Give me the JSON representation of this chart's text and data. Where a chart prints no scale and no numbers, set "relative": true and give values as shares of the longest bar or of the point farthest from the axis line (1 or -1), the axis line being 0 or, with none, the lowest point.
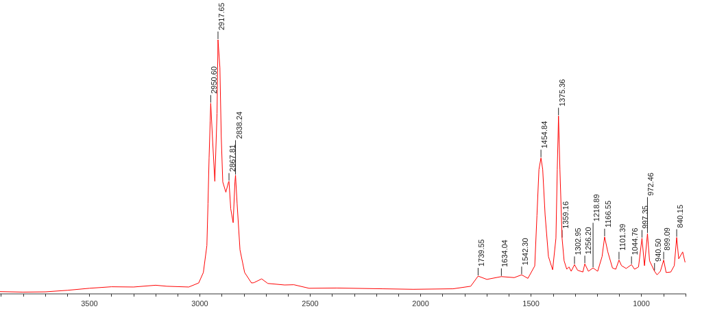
{
  "chart_data": {
    "type": "line",
    "relative": true,
    "x": [
      3905,
      3800,
      3700,
      3600,
      3500,
      3400,
      3300,
      3200,
      3150,
      3050,
      3005,
      2984,
      2968,
      2963,
      2958,
      2953,
      2950.6,
      2943,
      2932,
      2922,
      2917.65,
      2909,
      2903,
      2896,
      2882,
      2870,
      2867.81,
      2860,
      2849,
      2841,
      2838.24,
      2831,
      2818,
      2797,
      2766,
      2755,
      2720,
      2692,
      2616,
      2574,
      2505,
      2380,
      2172,
      2033,
      1853,
      1773,
      1739.55,
      1700,
      1634.04,
      1576,
      1542.3,
      1514,
      1483,
      1473,
      1464,
      1454.84,
      1447,
      1436,
      1421,
      1402,
      1387,
      1381,
      1375.36,
      1369,
      1359.16,
      1350,
      1338,
      1328,
      1318,
      1302.95,
      1289,
      1265,
      1256.2,
      1240,
      1218.89,
      1198,
      1178,
      1166.55,
      1152,
      1131,
      1116,
      1101.39,
      1090,
      1069,
      1044.76,
      1031,
      1013,
      997.35,
      986,
      972.46,
      963,
      940.5,
      929,
      914,
      899.09,
      888,
      867,
      851,
      840.15,
      831,
      813,
      802
    ],
    "series": [
      {
        "color": "#ff0000",
        "values": [
          0.009,
          0.007,
          0.008,
          0.014,
          0.022,
          0.028,
          0.027,
          0.034,
          0.03,
          0.027,
          0.043,
          0.084,
          0.19,
          0.354,
          0.535,
          0.68,
          0.75,
          0.62,
          0.443,
          0.71,
          1.0,
          0.89,
          0.62,
          0.44,
          0.4,
          0.44,
          0.443,
          0.335,
          0.28,
          0.44,
          0.467,
          0.354,
          0.173,
          0.084,
          0.043,
          0.044,
          0.059,
          0.041,
          0.035,
          0.036,
          0.022,
          0.023,
          0.02,
          0.018,
          0.02,
          0.03,
          0.07,
          0.057,
          0.068,
          0.064,
          0.075,
          0.061,
          0.11,
          0.309,
          0.489,
          0.535,
          0.49,
          0.31,
          0.147,
          0.095,
          0.219,
          0.489,
          0.7,
          0.49,
          0.219,
          0.13,
          0.097,
          0.106,
          0.089,
          0.115,
          0.093,
          0.086,
          0.118,
          0.089,
          0.102,
          0.089,
          0.147,
          0.224,
          0.165,
          0.102,
          0.097,
          0.133,
          0.111,
          0.1,
          0.115,
          0.097,
          0.106,
          0.219,
          0.111,
          0.237,
          0.13,
          0.089,
          0.075,
          0.089,
          0.133,
          0.084,
          0.086,
          0.111,
          0.222,
          0.138,
          0.165,
          0.124
        ]
      }
    ],
    "xlim": [
      3905,
      800
    ],
    "xticks": [
      {
        "value": 3900,
        "label": null
      },
      {
        "value": 3800,
        "label": null
      },
      {
        "value": 3700,
        "label": null
      },
      {
        "value": 3600,
        "label": null
      },
      3500,
      {
        "value": 3400,
        "label": null
      },
      {
        "value": 3300,
        "label": null
      },
      {
        "value": 3200,
        "label": null
      },
      {
        "value": 3100,
        "label": null
      },
      3000,
      {
        "value": 2900,
        "label": null
      },
      {
        "value": 2800,
        "label": null
      },
      {
        "value": 2700,
        "label": null
      },
      {
        "value": 2600,
        "label": null
      },
      2500,
      {
        "value": 2400,
        "label": null
      },
      {
        "value": 2300,
        "label": null
      },
      {
        "value": 2200,
        "label": null
      },
      {
        "value": 2100,
        "label": null
      },
      2000,
      {
        "value": 1900,
        "label": null
      },
      {
        "value": 1800,
        "label": null
      },
      {
        "value": 1700,
        "label": null
      },
      {
        "value": 1600,
        "label": null
      },
      1500,
      {
        "value": 1400,
        "label": null
      },
      {
        "value": 1300,
        "label": null
      },
      {
        "value": 1200,
        "label": null
      },
      {
        "value": 1100,
        "label": null
      },
      1000,
      {
        "value": 900,
        "label": null
      },
      {
        "value": 800,
        "label": null
      }
    ],
    "marker": "none",
    "grid": false,
    "annotations": [
      {
        "text": "2950.60",
        "x": 2950.6,
        "y": 0.75
      },
      {
        "text": "2917.65",
        "x": 2917.65,
        "y": 1.0
      },
      {
        "text": "2867.81",
        "x": 2867.81,
        "y": 0.443
      },
      {
        "text": "2838.24",
        "x": 2838.24,
        "y": 0.467
      },
      {
        "text": "1739.55",
        "x": 1739.55,
        "y": 0.07
      },
      {
        "text": "1634.04",
        "x": 1634.04,
        "y": 0.068
      },
      {
        "text": "1542.30",
        "x": 1542.3,
        "y": 0.075
      },
      {
        "text": "1454.84",
        "x": 1454.84,
        "y": 0.535
      },
      {
        "text": "1375.36",
        "x": 1375.36,
        "y": 0.7
      },
      {
        "text": "1359.16",
        "x": 1359.16,
        "y": 0.219
      },
      {
        "text": "1302.95",
        "x": 1302.95,
        "y": 0.115
      },
      {
        "text": "1256.20",
        "x": 1256.2,
        "y": 0.118
      },
      {
        "text": "1218.89",
        "x": 1218.89,
        "y": 0.102
      },
      {
        "text": "1166.55",
        "x": 1166.55,
        "y": 0.224
      },
      {
        "text": "1101.39",
        "x": 1101.39,
        "y": 0.133
      },
      {
        "text": "1044.76",
        "x": 1044.76,
        "y": 0.115
      },
      {
        "text": "997.35",
        "x": 997.35,
        "y": 0.219
      },
      {
        "text": "972.46",
        "x": 972.46,
        "y": 0.237
      },
      {
        "text": "940.50",
        "x": 940.5,
        "y": 0.089
      },
      {
        "text": "899.09",
        "x": 899.09,
        "y": 0.133
      },
      {
        "text": "840.15",
        "x": 840.15,
        "y": 0.222
      }
    ]
  }
}
